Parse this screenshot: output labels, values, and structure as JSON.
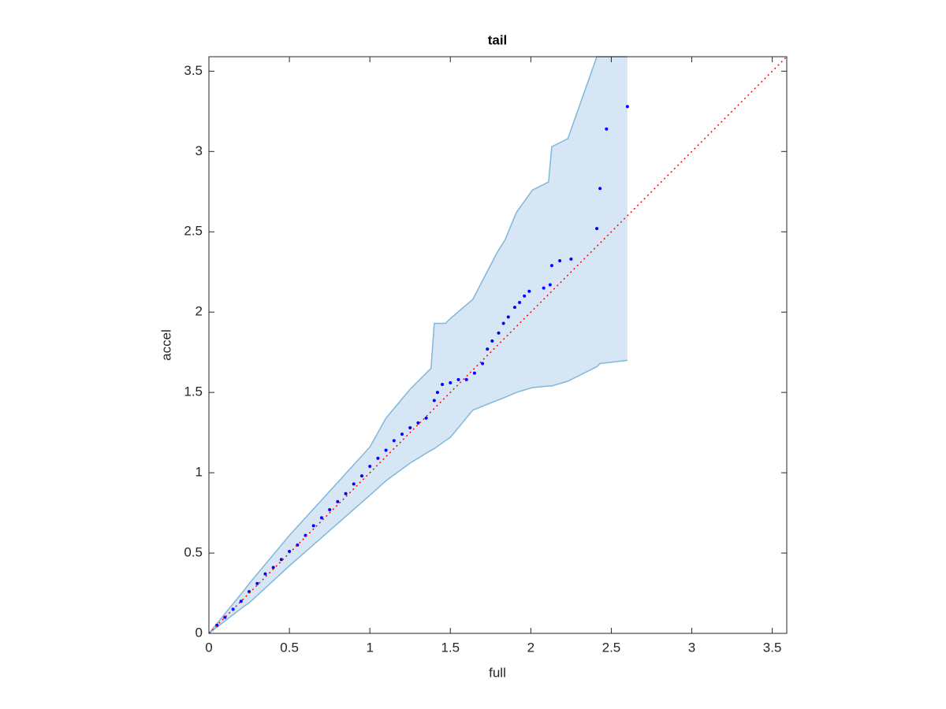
{
  "chart_data": {
    "type": "scatter",
    "title": "tail",
    "xlabel": "full",
    "ylabel": "accel",
    "xlim": [
      0,
      3.59
    ],
    "ylim": [
      0,
      3.59
    ],
    "xticks": [
      0,
      0.5,
      1,
      1.5,
      2,
      2.5,
      3,
      3.5
    ],
    "yticks": [
      0,
      0.5,
      1,
      1.5,
      2,
      2.5,
      3,
      3.5
    ],
    "series": [
      {
        "type": "area",
        "color": "#d6e6f4",
        "edgecolor": "#7fb7da",
        "x": [
          0,
          0.22,
          0.25,
          0.5,
          1.0,
          1.1,
          1.25,
          1.38,
          1.4,
          1.47,
          1.5,
          1.64,
          1.79,
          1.84,
          1.91,
          2.01,
          2.11,
          2.13,
          2.23,
          2.41,
          2.43,
          2.6
        ],
        "upper": [
          0,
          0.27,
          0.31,
          0.61,
          1.16,
          1.34,
          1.52,
          1.65,
          1.93,
          1.93,
          1.96,
          2.08,
          2.37,
          2.45,
          2.62,
          2.76,
          2.81,
          3.03,
          3.08,
          3.59,
          3.59,
          3.59
        ],
        "lower": [
          0,
          0.17,
          0.19,
          0.42,
          0.86,
          0.95,
          1.06,
          1.14,
          1.15,
          1.2,
          1.22,
          1.39,
          1.45,
          1.47,
          1.5,
          1.53,
          1.54,
          1.54,
          1.57,
          1.66,
          1.68,
          1.7
        ]
      },
      {
        "type": "scatter",
        "color": "#0000ff",
        "x": [
          0.05,
          0.1,
          0.15,
          0.2,
          0.25,
          0.3,
          0.35,
          0.4,
          0.45,
          0.5,
          0.55,
          0.6,
          0.65,
          0.7,
          0.75,
          0.8,
          0.85,
          0.9,
          0.95,
          1.0,
          1.05,
          1.1,
          1.15,
          1.2,
          1.25,
          1.3,
          1.35,
          1.4,
          1.42,
          1.45,
          1.5,
          1.55,
          1.6,
          1.65,
          1.7,
          1.73,
          1.76,
          1.8,
          1.83,
          1.86,
          1.9,
          1.93,
          1.96,
          1.99,
          2.08,
          2.12,
          2.13,
          2.18,
          2.25,
          2.41,
          2.43,
          2.47,
          2.6
        ],
        "y": [
          0.05,
          0.1,
          0.15,
          0.2,
          0.26,
          0.31,
          0.37,
          0.41,
          0.46,
          0.51,
          0.55,
          0.61,
          0.67,
          0.72,
          0.77,
          0.82,
          0.87,
          0.93,
          0.98,
          1.04,
          1.09,
          1.14,
          1.2,
          1.24,
          1.28,
          1.31,
          1.34,
          1.45,
          1.5,
          1.55,
          1.56,
          1.58,
          1.58,
          1.62,
          1.68,
          1.77,
          1.82,
          1.87,
          1.93,
          1.97,
          2.03,
          2.06,
          2.1,
          2.13,
          2.15,
          2.17,
          2.29,
          2.32,
          2.33,
          2.52,
          2.77,
          3.14,
          3.28
        ]
      },
      {
        "type": "line",
        "color": "#ff0000",
        "linestyle": "dotted",
        "x": [
          0,
          3.59
        ],
        "y": [
          0,
          3.59
        ]
      }
    ]
  }
}
